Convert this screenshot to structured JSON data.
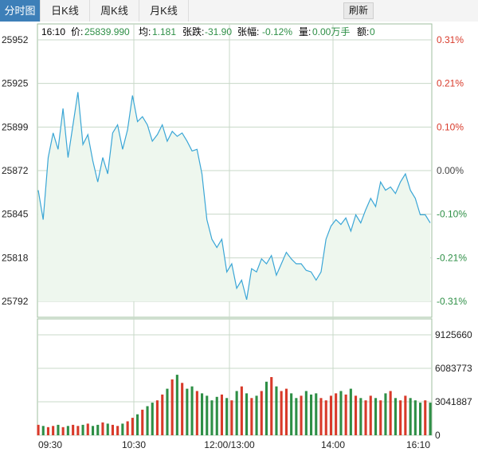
{
  "tabs": [
    {
      "label": "分时图",
      "active": true
    },
    {
      "label": "日K线",
      "active": false
    },
    {
      "label": "周K线",
      "active": false
    },
    {
      "label": "月K线",
      "active": false
    }
  ],
  "refresh_label": "刷新",
  "info": {
    "time": "16:10",
    "price_label": "价:",
    "price": "25839.990",
    "avg_label": "均:",
    "avg": "1.181",
    "change_label": "张跌:",
    "change": "-31.90",
    "pct_label": "张幅:",
    "pct": "-0.12%",
    "vol_label": "量:",
    "vol": "0.00万手",
    "amount_label": "额:",
    "amount": "0"
  },
  "colors": {
    "line": "#3aa6d6",
    "area": "#eef7ee",
    "up": "#d83a2a",
    "down": "#2e8f46",
    "neutral": "#444444",
    "grid": "#c8d8c8"
  },
  "chart_data": {
    "type": "line",
    "price_axis": [
      "25952",
      "25925",
      "25899",
      "25872",
      "25845",
      "25818",
      "25792"
    ],
    "percent_axis": [
      "0.31%",
      "0.21%",
      "0.10%",
      "0.00%",
      "-0.10%",
      "-0.21%",
      "-0.31%"
    ],
    "ylim": [
      25792,
      25952
    ],
    "prev_close": 25872,
    "x_ticks": [
      "09:30",
      "10:30",
      "12:00/13:00",
      "14:00",
      "16:10"
    ],
    "price_series": [
      25860,
      25842,
      25880,
      25895,
      25885,
      25910,
      25880,
      25900,
      25920,
      25888,
      25894,
      25878,
      25865,
      25880,
      25870,
      25895,
      25900,
      25885,
      25897,
      25918,
      25902,
      25905,
      25900,
      25890,
      25894,
      25900,
      25890,
      25896,
      25893,
      25895,
      25890,
      25884,
      25885,
      25870,
      25842,
      25830,
      25825,
      25830,
      25810,
      25815,
      25800,
      25805,
      25793,
      25812,
      25810,
      25818,
      25815,
      25820,
      25808,
      25815,
      25822,
      25818,
      25815,
      25815,
      25811,
      25810,
      25805,
      25810,
      25830,
      25838,
      25842,
      25839,
      25843,
      25835,
      25845,
      25840,
      25848,
      25855,
      25850,
      25865,
      25860,
      25862,
      25858,
      25865,
      25870,
      25860,
      25855,
      25845,
      25845,
      25840
    ],
    "volume_axis": [
      "9125660",
      "6083773",
      "3041887",
      "0"
    ],
    "volume_max": 9125660,
    "volume_series": [
      0.9,
      0.8,
      0.7,
      0.8,
      0.9,
      0.7,
      0.8,
      0.9,
      0.8,
      0.9,
      1.0,
      0.8,
      0.9,
      1.1,
      1.0,
      0.9,
      0.8,
      1.0,
      1.2,
      1.5,
      1.8,
      2.2,
      2.5,
      2.8,
      3.0,
      3.5,
      4.0,
      4.8,
      5.2,
      4.5,
      4.0,
      4.2,
      3.8,
      3.6,
      3.4,
      3.0,
      3.3,
      3.5,
      3.2,
      3.0,
      3.8,
      4.2,
      3.6,
      3.2,
      3.4,
      3.8,
      4.6,
      5.0,
      4.2,
      3.8,
      4.0,
      3.6,
      3.2,
      3.4,
      3.8,
      3.5,
      3.6,
      3.2,
      3.0,
      3.4,
      3.6,
      3.8,
      3.5,
      4.0,
      3.4,
      3.2,
      3.0,
      3.4,
      3.2,
      3.0,
      3.6,
      3.8,
      3.2,
      3.0,
      3.4,
      3.2,
      3.0,
      2.8,
      3.0,
      2.8
    ]
  }
}
